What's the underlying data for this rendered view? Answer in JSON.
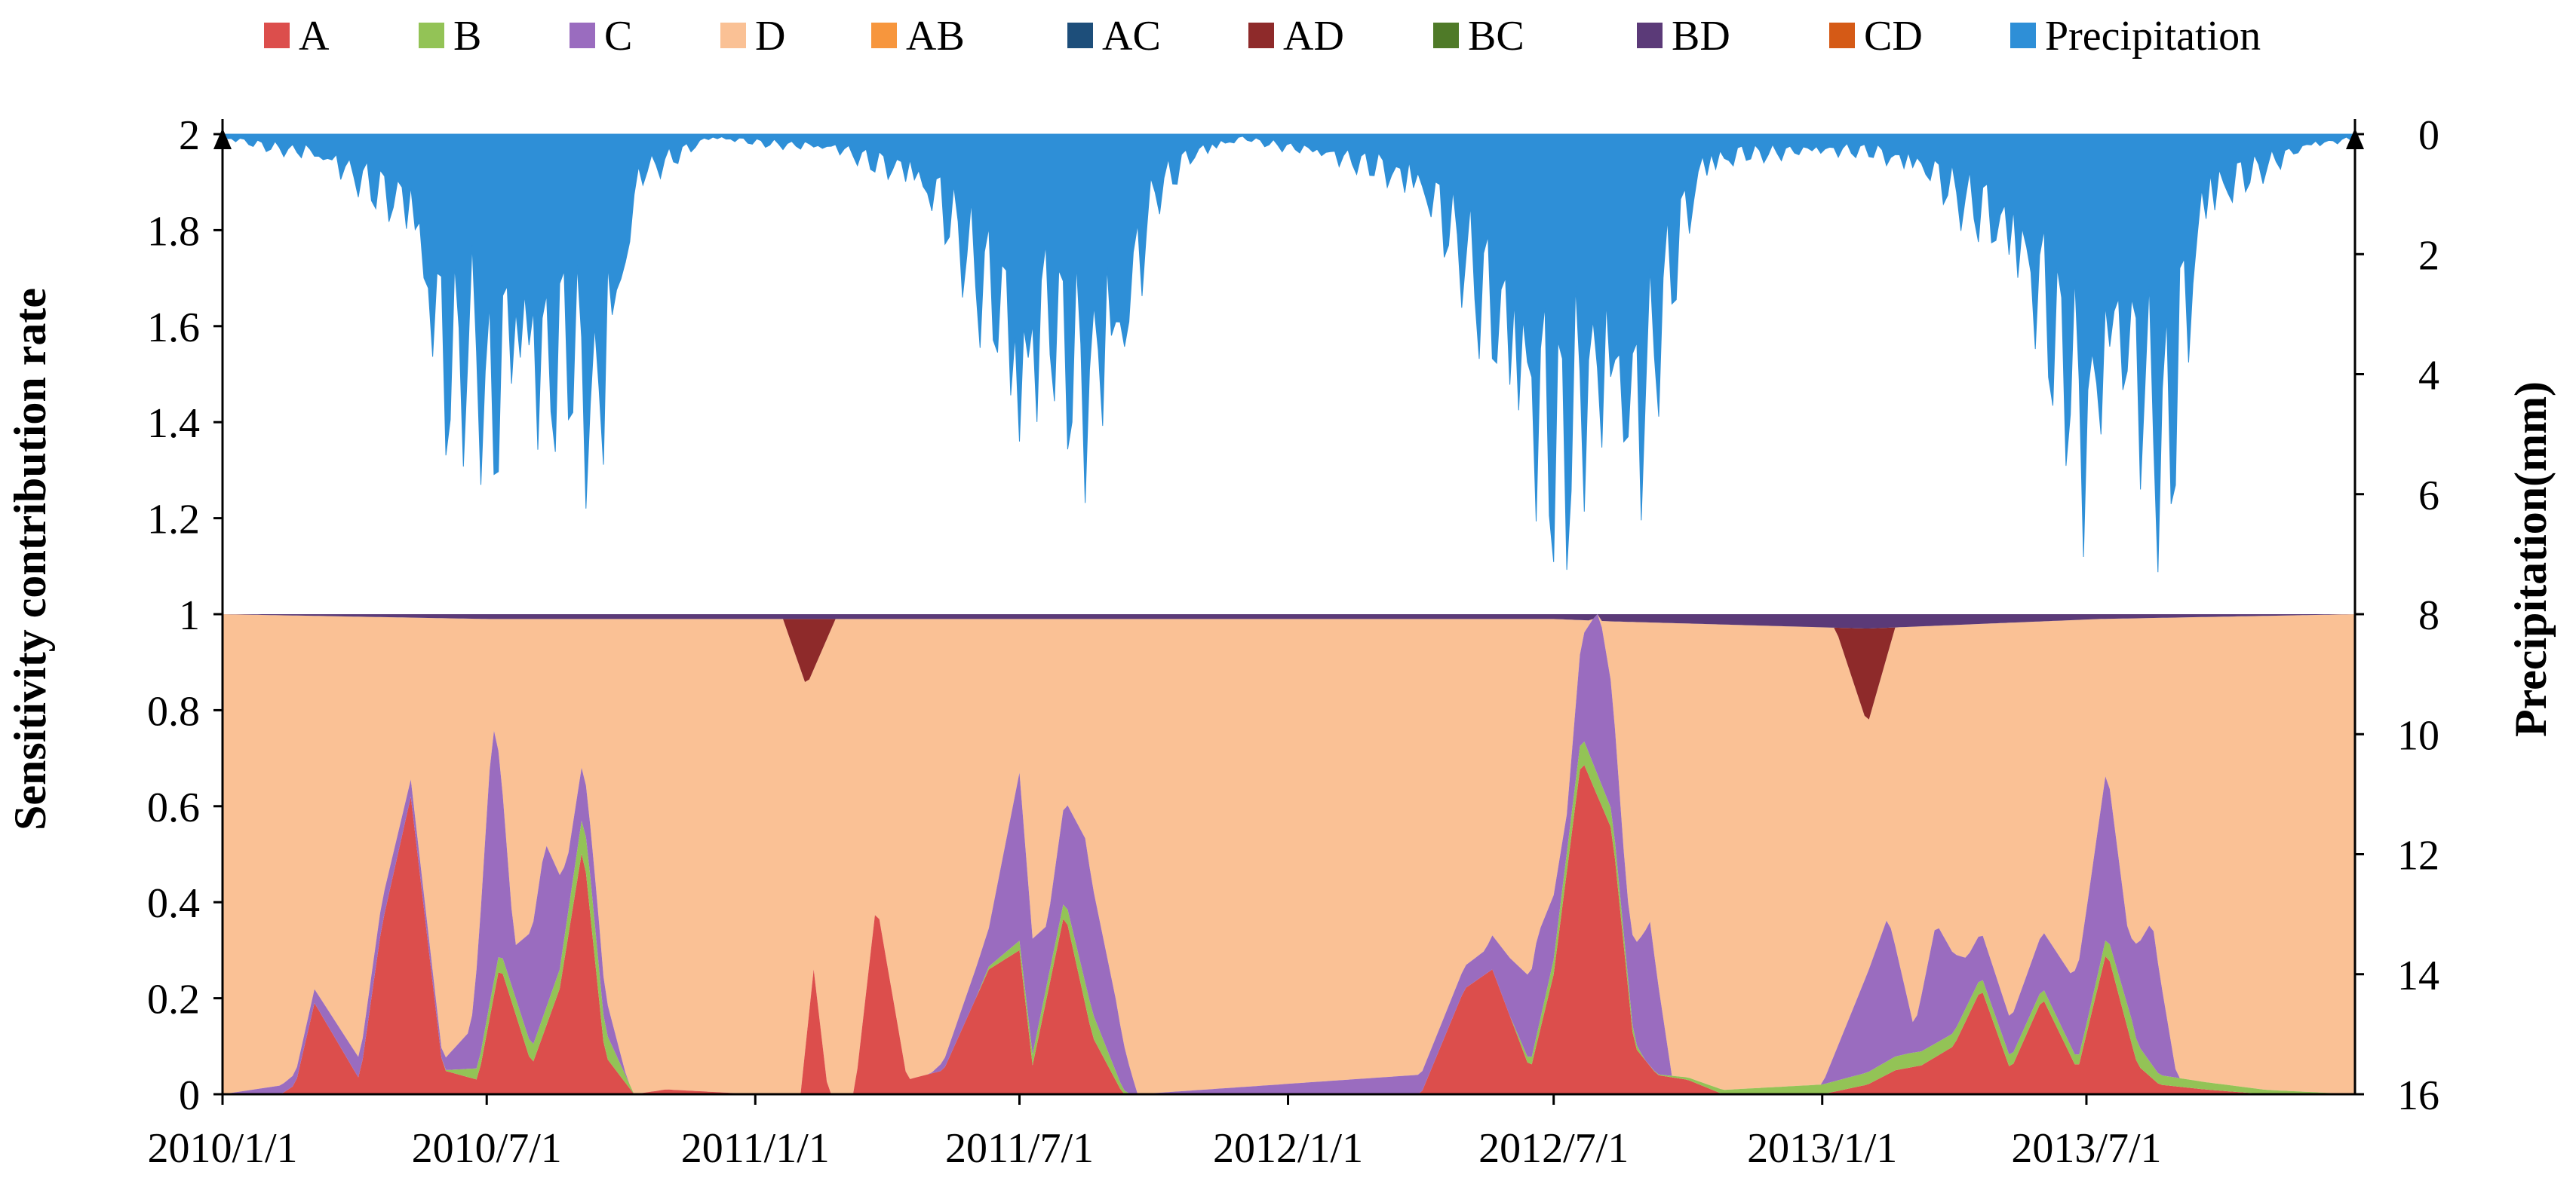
{
  "chart_data": {
    "type": "area",
    "subtype": "stacked area with inverted precipitation overlay",
    "ylabel": "Sensitivity contribution  rate",
    "y2label": "Precipitation(mm)",
    "ylim": [
      0,
      2
    ],
    "y2lim": [
      16,
      0
    ],
    "y2_inverted": true,
    "grid": false,
    "legend_position": "top",
    "y_ticks": [
      "0",
      "0.2",
      "0.4",
      "0.6",
      "0.8",
      "1",
      "1.2",
      "1.4",
      "1.6",
      "1.8",
      "2"
    ],
    "y2_ticks": [
      "16",
      "14",
      "12",
      "10",
      "8",
      "6",
      "4",
      "2",
      "0"
    ],
    "x_ticks": [
      "2010/1/1",
      "2010/7/1",
      "2011/1/1",
      "2011/7/1",
      "2012/1/1",
      "2012/7/1",
      "2013/1/1",
      "2013/7/1"
    ],
    "x_range": [
      "2010/1/1",
      "2014/1/1"
    ],
    "legend": [
      {
        "name": "A",
        "color": "#dc4e4c"
      },
      {
        "name": "B",
        "color": "#93c356"
      },
      {
        "name": "C",
        "color": "#9a6cbf"
      },
      {
        "name": "D",
        "color": "#fac195"
      },
      {
        "name": "AB",
        "color": "#f7963d"
      },
      {
        "name": "AC",
        "color": "#1d4e7a"
      },
      {
        "name": "AD",
        "color": "#8e2a2a"
      },
      {
        "name": "BC",
        "color": "#4f7a28"
      },
      {
        "name": "BD",
        "color": "#5b3a78"
      },
      {
        "name": "CD",
        "color": "#d55a16"
      },
      {
        "name": "Precipitation",
        "color": "#2e8fd7"
      }
    ],
    "series": [
      {
        "name": "A",
        "x": [
          "2010/1/1",
          "2010/2/10",
          "2010/2/20",
          "2010/3/5",
          "2010/4/5",
          "2010/4/20",
          "2010/5/10",
          "2010/6/1",
          "2010/6/25",
          "2010/7/10",
          "2010/8/1",
          "2010/8/20",
          "2010/9/5",
          "2010/9/20",
          "2010/10/10",
          "2010/11/1",
          "2011/1/1",
          "2011/2/1",
          "2011/2/10",
          "2011/2/20",
          "2011/3/10",
          "2011/3/25",
          "2011/4/15",
          "2011/5/10",
          "2011/6/10",
          "2011/7/1",
          "2011/7/10",
          "2011/8/1",
          "2011/8/20",
          "2011/9/10",
          "2011/9/25",
          "2011/11/1",
          "2012/1/1",
          "2012/3/1",
          "2012/4/1",
          "2012/5/1",
          "2012/5/20",
          "2012/6/15",
          "2012/7/1",
          "2012/7/20",
          "2012/8/10",
          "2012/8/25",
          "2012/9/10",
          "2012/10/1",
          "2012/10/25",
          "2012/11/15",
          "2013/1/1",
          "2013/2/1",
          "2013/2/20",
          "2013/3/10",
          "2013/4/1",
          "2013/4/20",
          "2013/5/10",
          "2013/6/1",
          "2013/6/25",
          "2013/7/15",
          "2013/8/5",
          "2013/8/20",
          "2013/9/20",
          "2013/11/1",
          "2014/1/1"
        ],
        "values": [
          0,
          0,
          0.02,
          0.19,
          0.03,
          0.35,
          0.62,
          0.05,
          0.03,
          0.27,
          0.06,
          0.22,
          0.52,
          0.08,
          0,
          0.01,
          0,
          0,
          0.26,
          0,
          0,
          0.4,
          0.03,
          0.05,
          0.26,
          0.3,
          0.06,
          0.38,
          0.12,
          0,
          0,
          0,
          0,
          0,
          0,
          0.22,
          0.26,
          0.05,
          0.25,
          0.7,
          0.55,
          0.1,
          0.04,
          0.03,
          0,
          0,
          0,
          0.02,
          0.05,
          0.06,
          0.1,
          0.22,
          0.05,
          0.2,
          0.05,
          0.3,
          0.06,
          0.02,
          0.01,
          0,
          0
        ]
      },
      {
        "name": "B",
        "x": [
          "2010/1/1",
          "2010/6/1",
          "2010/7/1",
          "2010/8/20",
          "2010/9/10",
          "2010/10/10",
          "2011/6/1",
          "2011/7/1",
          "2011/8/1",
          "2011/8/20",
          "2011/9/15",
          "2012/6/1",
          "2012/7/20",
          "2012/8/10",
          "2012/9/1",
          "2013/3/1",
          "2013/7/1",
          "2013/8/1",
          "2013/8/20",
          "2014/1/1"
        ],
        "values": [
          0,
          0,
          0.03,
          0.04,
          0.08,
          0,
          0,
          0.02,
          0.03,
          0.05,
          0,
          0,
          0.05,
          0.04,
          0,
          0.03,
          0.02,
          0.05,
          0.02,
          0
        ]
      },
      {
        "name": "C",
        "x": [
          "2010/1/1",
          "2010/4/20",
          "2010/6/1",
          "2010/6/20",
          "2010/7/5",
          "2010/7/20",
          "2010/8/10",
          "2010/8/25",
          "2010/9/15",
          "2010/10/5",
          "2011/5/1",
          "2011/6/10",
          "2011/7/1",
          "2011/7/20",
          "2011/8/15",
          "2011/9/5",
          "2011/9/20",
          "2012/5/15",
          "2012/6/20",
          "2012/7/10",
          "2012/8/1",
          "2012/8/20",
          "2012/9/5",
          "2012/9/20",
          "2013/1/1",
          "2013/2/15",
          "2013/3/5",
          "2013/3/20",
          "2013/4/10",
          "2013/5/10",
          "2013/6/20",
          "2013/7/15",
          "2013/7/30",
          "2013/8/15",
          "2013/9/1",
          "2014/1/1"
        ],
        "values": [
          0,
          0.05,
          0.02,
          0.08,
          0.55,
          0.1,
          0.35,
          0.12,
          0.1,
          0,
          0,
          0.08,
          0.35,
          0.12,
          0.3,
          0.15,
          0,
          0.05,
          0.2,
          0.08,
          0.35,
          0.15,
          0.3,
          0,
          0,
          0.3,
          0.05,
          0.25,
          0.1,
          0.08,
          0.15,
          0.35,
          0.15,
          0.3,
          0,
          0
        ]
      },
      {
        "name": "D",
        "x": [
          "2010/1/1",
          "2014/1/1"
        ],
        "values": [
          1.0,
          1.0
        ]
      },
      {
        "name": "AD",
        "x": [
          "2010/1/1",
          "2011/1/20",
          "2011/2/5",
          "2011/2/25",
          "2013/1/10",
          "2013/2/1",
          "2013/2/20",
          "2014/1/1"
        ],
        "values": [
          0,
          0,
          0.14,
          0,
          0,
          0.2,
          0,
          0
        ]
      },
      {
        "name": "BD",
        "x": [
          "2010/1/1",
          "2010/7/1",
          "2011/7/1",
          "2012/7/1",
          "2012/8/10",
          "2013/2/1",
          "2013/7/10",
          "2014/1/1"
        ],
        "values": [
          0,
          0.01,
          0.01,
          0.01,
          0.015,
          0.03,
          0.01,
          0
        ]
      },
      {
        "name": "Precipitation",
        "x": [
          "2010/1/1",
          "2010/3/1",
          "2010/4/10",
          "2010/5/10",
          "2010/6/1",
          "2010/6/25",
          "2010/7/1",
          "2010/7/20",
          "2010/8/10",
          "2010/8/25",
          "2010/9/15",
          "2010/10/15",
          "2010/11/10",
          "2010/12/1",
          "2011/3/1",
          "2011/4/15",
          "2011/5/20",
          "2011/6/20",
          "2011/7/1",
          "2011/7/20",
          "2011/8/15",
          "2011/9/10",
          "2011/10/1",
          "2011/10/25",
          "2011/12/1",
          "2012/3/1",
          "2012/4/1",
          "2012/5/1",
          "2012/6/1",
          "2012/6/20",
          "2012/7/5",
          "2012/7/25",
          "2012/8/15",
          "2012/8/25",
          "2012/9/15",
          "2012/10/10",
          "2012/11/10",
          "2013/2/1",
          "2013/3/15",
          "2013/4/20",
          "2013/5/20",
          "2013/6/20",
          "2013/7/1",
          "2013/7/20",
          "2013/8/10",
          "2013/8/25",
          "2013/9/20",
          "2013/10/20",
          "2013/12/1",
          "2014/1/1"
        ],
        "values": [
          0.1,
          0.5,
          1.2,
          2.0,
          6.5,
          5.0,
          8.0,
          5.5,
          6.5,
          5.0,
          7.5,
          1.0,
          0.5,
          0.1,
          0.4,
          1.0,
          2.5,
          5.0,
          7.5,
          4.5,
          6.5,
          5.5,
          1.5,
          0.6,
          0.1,
          0.8,
          1.5,
          3.0,
          6.0,
          7.5,
          8.0,
          6.5,
          7.0,
          8.0,
          4.0,
          1.0,
          0.5,
          0.4,
          1.0,
          2.0,
          3.5,
          6.0,
          8.0,
          5.5,
          6.5,
          8.0,
          2.0,
          1.0,
          0.3,
          0.1
        ]
      }
    ]
  }
}
